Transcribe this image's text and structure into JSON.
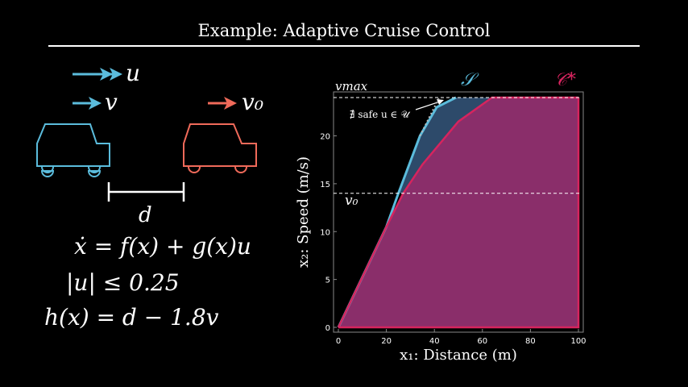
{
  "title": "Example: Adaptive Cruise Control",
  "legend": {
    "u": "u",
    "v": "v",
    "v0": "v₀",
    "d": "d"
  },
  "equations": {
    "dynamics": "ẋ = f(x) + g(x)u",
    "input_bound": "|u| ≤ 0.25",
    "barrier": "h(x) = d − 1.8v"
  },
  "colors": {
    "ego": "#5bbcdc",
    "lead": "#f06a5a",
    "safe_set": "#5bbcdc",
    "safe_fill": "#2d4a6a",
    "c_star": "#d6245e",
    "c_star_fill": "#8a2e6a"
  },
  "chart_data": {
    "type": "area",
    "xlabel": "x₁: Distance (m)",
    "ylabel": "x₂: Speed (m/s)",
    "xlim": [
      0,
      100
    ],
    "ylim": [
      0,
      24
    ],
    "x_ticks": [
      0,
      20,
      40,
      60,
      80,
      100
    ],
    "y_ticks": [
      0,
      5,
      10,
      15,
      20
    ],
    "grid": false,
    "reference_lines": [
      {
        "label": "vmax",
        "y": 24
      },
      {
        "label": "v₀",
        "y": 14
      }
    ],
    "series": [
      {
        "name": "𝒮",
        "boundary": [
          [
            0,
            0
          ],
          [
            20,
            10.5
          ],
          [
            25,
            14
          ],
          [
            34,
            20
          ],
          [
            41,
            23
          ],
          [
            49,
            24
          ]
        ]
      },
      {
        "name": "𝒞*",
        "boundary": [
          [
            0,
            0
          ],
          [
            20,
            10.5
          ],
          [
            27,
            14
          ],
          [
            35,
            17
          ],
          [
            50,
            21.5
          ],
          [
            64,
            24
          ]
        ]
      }
    ],
    "annotation": "∄ safe u ∈ 𝒰"
  }
}
